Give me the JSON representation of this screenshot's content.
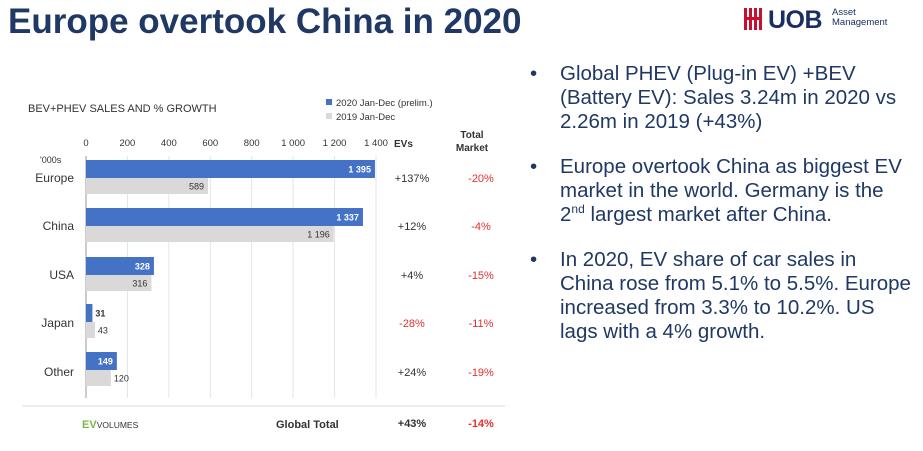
{
  "slide": {
    "title": "Europe overtook China in 2020"
  },
  "logo": {
    "name": "UOB",
    "sub_line1": "Asset",
    "sub_line2": "Management",
    "color": "#c8102e"
  },
  "bullets": [
    {
      "text": "Global PHEV (Plug-in EV) +BEV (Battery EV): Sales 3.24m in 2020 vs 2.26m in 2019 (+43%)"
    },
    {
      "pre": "Europe overtook China as biggest EV market in the world. Germany is the 2",
      "sup": "nd",
      "post": " largest market after China."
    },
    {
      "text": "In 2020, EV share of car sales in China rose from 5.1% to 5.5%. Europe increased from 3.3% to 10.2%. US lags with a 4% growth."
    }
  ],
  "chart_data": {
    "type": "bar",
    "orientation": "horizontal",
    "title": "BEV+PHEV SALES AND % GROWTH",
    "unit_label": "'000s",
    "categories": [
      "Europe",
      "China",
      "USA",
      "Japan",
      "Other"
    ],
    "series": [
      {
        "name": "2020 Jan-Dec (prelim.)",
        "values": [
          1395,
          1337,
          328,
          31,
          149
        ],
        "labels": [
          "1 395",
          "1 337",
          "328",
          "31",
          "149"
        ],
        "color": "#4472c4"
      },
      {
        "name": "2019 Jan-Dec",
        "values": [
          589,
          1196,
          316,
          43,
          120
        ],
        "labels": [
          "589",
          "1 196",
          "316",
          "43",
          "120"
        ],
        "color": "#d9d9d9"
      }
    ],
    "xlim": [
      0,
      1400
    ],
    "ticks": [
      {
        "value": 0,
        "label": "0"
      },
      {
        "value": 200,
        "label": "200"
      },
      {
        "value": 400,
        "label": "400"
      },
      {
        "value": 600,
        "label": "600"
      },
      {
        "value": 800,
        "label": "800"
      },
      {
        "value": 1000,
        "label": "1 000"
      },
      {
        "value": 1200,
        "label": "1 200"
      },
      {
        "value": 1400,
        "label": "1 400"
      }
    ],
    "grid": true,
    "legend_position": "top-right",
    "columns": {
      "evs_header": "EVs",
      "market_header_line1": "Total",
      "market_header_line2": "Market"
    },
    "evs_growth": [
      "+137%",
      "+12%",
      "+4%",
      "-28%",
      "+24%"
    ],
    "market_growth": [
      "-20%",
      "-4%",
      "-15%",
      "-11%",
      "-19%"
    ],
    "footer": {
      "source_ev": "EV",
      "source_volumes": "VOLUMES",
      "total_label": "Global Total",
      "total_evs": "+43%",
      "total_market": "-14%"
    },
    "colors": {
      "positive": "#333333",
      "negative": "#e03030",
      "source_green": "#7ab648"
    }
  }
}
